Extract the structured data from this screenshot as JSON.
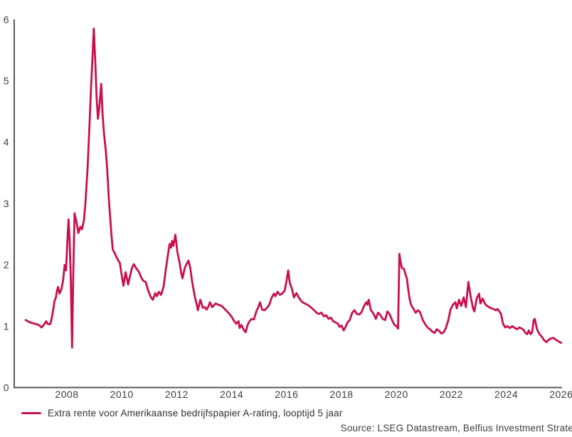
{
  "source_note": "Source: LSEG Datastream, Belfius Investment Strate",
  "colors": {
    "line": "#c8104e",
    "axis": "#59595b",
    "tick_text": "#3d3d3d"
  },
  "chart_data": {
    "type": "line",
    "title": "",
    "xlabel": "",
    "ylabel": "",
    "grid": false,
    "legend_position": "bottom-left",
    "x_ticks": [
      2008,
      2010,
      2012,
      2014,
      2016,
      2018,
      2020,
      2022,
      2024,
      2026
    ],
    "y_ticks": [
      0,
      1,
      2,
      3,
      4,
      5,
      6
    ],
    "x_range": [
      2006.2,
      2026.3
    ],
    "y_range": [
      0,
      6
    ],
    "series": [
      {
        "name": "Extra rente voor Amerikaanse bedrijfspapier A-rating, looptijd 5 jaar",
        "color": "#c8104e",
        "points": [
          [
            2006.5,
            1.1
          ],
          [
            2006.58,
            1.08
          ],
          [
            2006.67,
            1.06
          ],
          [
            2006.75,
            1.05
          ],
          [
            2006.83,
            1.04
          ],
          [
            2006.92,
            1.03
          ],
          [
            2007.0,
            1.01
          ],
          [
            2007.08,
            0.98
          ],
          [
            2007.17,
            1.03
          ],
          [
            2007.25,
            1.08
          ],
          [
            2007.29,
            1.04
          ],
          [
            2007.38,
            1.03
          ],
          [
            2007.42,
            1.07
          ],
          [
            2007.47,
            1.18
          ],
          [
            2007.51,
            1.29
          ],
          [
            2007.55,
            1.41
          ],
          [
            2007.6,
            1.47
          ],
          [
            2007.64,
            1.58
          ],
          [
            2007.68,
            1.64
          ],
          [
            2007.73,
            1.53
          ],
          [
            2007.77,
            1.57
          ],
          [
            2007.81,
            1.62
          ],
          [
            2007.86,
            1.74
          ],
          [
            2007.92,
            2.0
          ],
          [
            2007.97,
            1.91
          ],
          [
            2008.02,
            2.4
          ],
          [
            2008.06,
            2.74
          ],
          [
            2008.1,
            2.4
          ],
          [
            2008.14,
            1.8
          ],
          [
            2008.19,
            0.65
          ],
          [
            2008.23,
            1.8
          ],
          [
            2008.28,
            2.84
          ],
          [
            2008.35,
            2.7
          ],
          [
            2008.42,
            2.52
          ],
          [
            2008.49,
            2.62
          ],
          [
            2008.55,
            2.58
          ],
          [
            2008.62,
            2.72
          ],
          [
            2008.67,
            2.98
          ],
          [
            2008.75,
            3.55
          ],
          [
            2008.82,
            4.25
          ],
          [
            2008.88,
            4.9
          ],
          [
            2008.93,
            5.35
          ],
          [
            2008.98,
            5.85
          ],
          [
            2009.03,
            5.35
          ],
          [
            2009.08,
            4.75
          ],
          [
            2009.13,
            4.38
          ],
          [
            2009.18,
            4.55
          ],
          [
            2009.25,
            4.95
          ],
          [
            2009.3,
            4.45
          ],
          [
            2009.35,
            4.15
          ],
          [
            2009.42,
            3.85
          ],
          [
            2009.47,
            3.55
          ],
          [
            2009.53,
            3.05
          ],
          [
            2009.58,
            2.75
          ],
          [
            2009.63,
            2.45
          ],
          [
            2009.67,
            2.25
          ],
          [
            2009.73,
            2.2
          ],
          [
            2009.79,
            2.14
          ],
          [
            2009.86,
            2.08
          ],
          [
            2009.93,
            2.03
          ],
          [
            2009.99,
            1.85
          ],
          [
            2010.06,
            1.66
          ],
          [
            2010.14,
            1.88
          ],
          [
            2010.23,
            1.68
          ],
          [
            2010.3,
            1.82
          ],
          [
            2010.37,
            1.95
          ],
          [
            2010.44,
            2.01
          ],
          [
            2010.53,
            1.94
          ],
          [
            2010.62,
            1.89
          ],
          [
            2010.7,
            1.8
          ],
          [
            2010.78,
            1.74
          ],
          [
            2010.87,
            1.72
          ],
          [
            2010.96,
            1.58
          ],
          [
            2011.05,
            1.48
          ],
          [
            2011.13,
            1.43
          ],
          [
            2011.22,
            1.54
          ],
          [
            2011.28,
            1.49
          ],
          [
            2011.35,
            1.56
          ],
          [
            2011.43,
            1.51
          ],
          [
            2011.52,
            1.64
          ],
          [
            2011.6,
            1.92
          ],
          [
            2011.68,
            2.16
          ],
          [
            2011.74,
            2.34
          ],
          [
            2011.79,
            2.28
          ],
          [
            2011.83,
            2.39
          ],
          [
            2011.88,
            2.31
          ],
          [
            2011.95,
            2.49
          ],
          [
            2012.02,
            2.22
          ],
          [
            2012.1,
            2.04
          ],
          [
            2012.17,
            1.85
          ],
          [
            2012.21,
            1.78
          ],
          [
            2012.3,
            1.96
          ],
          [
            2012.38,
            2.03
          ],
          [
            2012.43,
            2.07
          ],
          [
            2012.5,
            1.93
          ],
          [
            2012.56,
            1.73
          ],
          [
            2012.66,
            1.48
          ],
          [
            2012.73,
            1.35
          ],
          [
            2012.77,
            1.26
          ],
          [
            2012.86,
            1.43
          ],
          [
            2012.95,
            1.3
          ],
          [
            2013.02,
            1.31
          ],
          [
            2013.09,
            1.27
          ],
          [
            2013.16,
            1.33
          ],
          [
            2013.21,
            1.39
          ],
          [
            2013.29,
            1.31
          ],
          [
            2013.42,
            1.37
          ],
          [
            2013.51,
            1.35
          ],
          [
            2013.64,
            1.33
          ],
          [
            2013.77,
            1.27
          ],
          [
            2013.9,
            1.21
          ],
          [
            2013.99,
            1.16
          ],
          [
            2014.07,
            1.1
          ],
          [
            2014.16,
            1.04
          ],
          [
            2014.25,
            1.08
          ],
          [
            2014.29,
            0.97
          ],
          [
            2014.36,
            1.02
          ],
          [
            2014.44,
            0.94
          ],
          [
            2014.51,
            0.9
          ],
          [
            2014.58,
            1.02
          ],
          [
            2014.65,
            1.08
          ],
          [
            2014.73,
            1.12
          ],
          [
            2014.81,
            1.11
          ],
          [
            2014.9,
            1.24
          ],
          [
            2014.97,
            1.31
          ],
          [
            2015.03,
            1.39
          ],
          [
            2015.11,
            1.27
          ],
          [
            2015.2,
            1.26
          ],
          [
            2015.29,
            1.3
          ],
          [
            2015.37,
            1.35
          ],
          [
            2015.46,
            1.47
          ],
          [
            2015.54,
            1.53
          ],
          [
            2015.59,
            1.49
          ],
          [
            2015.67,
            1.56
          ],
          [
            2015.76,
            1.51
          ],
          [
            2015.84,
            1.53
          ],
          [
            2015.93,
            1.58
          ],
          [
            2016.0,
            1.74
          ],
          [
            2016.06,
            1.91
          ],
          [
            2016.12,
            1.7
          ],
          [
            2016.19,
            1.62
          ],
          [
            2016.27,
            1.47
          ],
          [
            2016.36,
            1.54
          ],
          [
            2016.43,
            1.48
          ],
          [
            2016.5,
            1.43
          ],
          [
            2016.58,
            1.39
          ],
          [
            2016.66,
            1.37
          ],
          [
            2016.76,
            1.35
          ],
          [
            2016.88,
            1.31
          ],
          [
            2017.0,
            1.26
          ],
          [
            2017.09,
            1.22
          ],
          [
            2017.18,
            1.2
          ],
          [
            2017.27,
            1.22
          ],
          [
            2017.36,
            1.16
          ],
          [
            2017.44,
            1.18
          ],
          [
            2017.53,
            1.12
          ],
          [
            2017.61,
            1.14
          ],
          [
            2017.7,
            1.08
          ],
          [
            2017.79,
            1.06
          ],
          [
            2017.87,
            1.04
          ],
          [
            2017.93,
            0.99
          ],
          [
            2018.0,
            1.01
          ],
          [
            2018.08,
            0.93
          ],
          [
            2018.15,
            0.99
          ],
          [
            2018.22,
            1.06
          ],
          [
            2018.3,
            1.1
          ],
          [
            2018.39,
            1.22
          ],
          [
            2018.47,
            1.26
          ],
          [
            2018.56,
            1.2
          ],
          [
            2018.65,
            1.19
          ],
          [
            2018.73,
            1.23
          ],
          [
            2018.82,
            1.33
          ],
          [
            2018.9,
            1.39
          ],
          [
            2018.94,
            1.35
          ],
          [
            2018.99,
            1.43
          ],
          [
            2019.07,
            1.26
          ],
          [
            2019.16,
            1.21
          ],
          [
            2019.25,
            1.12
          ],
          [
            2019.33,
            1.22
          ],
          [
            2019.42,
            1.18
          ],
          [
            2019.5,
            1.12
          ],
          [
            2019.59,
            1.1
          ],
          [
            2019.67,
            1.24
          ],
          [
            2019.76,
            1.19
          ],
          [
            2019.84,
            1.1
          ],
          [
            2019.93,
            1.02
          ],
          [
            2020.01,
            1.0
          ],
          [
            2020.06,
            0.96
          ],
          [
            2020.11,
            2.18
          ],
          [
            2020.15,
            2.05
          ],
          [
            2020.2,
            1.95
          ],
          [
            2020.28,
            1.93
          ],
          [
            2020.32,
            1.86
          ],
          [
            2020.38,
            1.78
          ],
          [
            2020.43,
            1.6
          ],
          [
            2020.48,
            1.45
          ],
          [
            2020.53,
            1.35
          ],
          [
            2020.61,
            1.29
          ],
          [
            2020.7,
            1.22
          ],
          [
            2020.78,
            1.26
          ],
          [
            2020.86,
            1.23
          ],
          [
            2020.96,
            1.1
          ],
          [
            2021.04,
            1.04
          ],
          [
            2021.13,
            0.98
          ],
          [
            2021.22,
            0.95
          ],
          [
            2021.31,
            0.91
          ],
          [
            2021.39,
            0.89
          ],
          [
            2021.47,
            0.95
          ],
          [
            2021.56,
            0.92
          ],
          [
            2021.64,
            0.88
          ],
          [
            2021.72,
            0.9
          ],
          [
            2021.8,
            0.97
          ],
          [
            2021.89,
            1.1
          ],
          [
            2021.97,
            1.27
          ],
          [
            2022.06,
            1.35
          ],
          [
            2022.15,
            1.39
          ],
          [
            2022.2,
            1.29
          ],
          [
            2022.28,
            1.43
          ],
          [
            2022.36,
            1.33
          ],
          [
            2022.45,
            1.47
          ],
          [
            2022.53,
            1.31
          ],
          [
            2022.62,
            1.72
          ],
          [
            2022.71,
            1.47
          ],
          [
            2022.79,
            1.29
          ],
          [
            2022.84,
            1.24
          ],
          [
            2022.92,
            1.45
          ],
          [
            2023.01,
            1.53
          ],
          [
            2023.06,
            1.37
          ],
          [
            2023.14,
            1.45
          ],
          [
            2023.22,
            1.37
          ],
          [
            2023.3,
            1.33
          ],
          [
            2023.38,
            1.31
          ],
          [
            2023.46,
            1.29
          ],
          [
            2023.54,
            1.28
          ],
          [
            2023.62,
            1.26
          ],
          [
            2023.68,
            1.28
          ],
          [
            2023.75,
            1.24
          ],
          [
            2023.81,
            1.2
          ],
          [
            2023.88,
            1.04
          ],
          [
            2023.96,
            0.98
          ],
          [
            2024.05,
            1.0
          ],
          [
            2024.13,
            0.97
          ],
          [
            2024.22,
            1.0
          ],
          [
            2024.31,
            0.97
          ],
          [
            2024.4,
            0.95
          ],
          [
            2024.48,
            0.98
          ],
          [
            2024.56,
            0.96
          ],
          [
            2024.63,
            0.94
          ],
          [
            2024.7,
            0.89
          ],
          [
            2024.76,
            0.87
          ],
          [
            2024.82,
            0.93
          ],
          [
            2024.88,
            0.87
          ],
          [
            2024.94,
            0.9
          ],
          [
            2025.0,
            1.1
          ],
          [
            2025.04,
            1.12
          ],
          [
            2025.12,
            0.95
          ],
          [
            2025.21,
            0.87
          ],
          [
            2025.29,
            0.83
          ],
          [
            2025.38,
            0.77
          ],
          [
            2025.46,
            0.74
          ],
          [
            2025.55,
            0.78
          ],
          [
            2025.63,
            0.8
          ],
          [
            2025.72,
            0.81
          ],
          [
            2025.8,
            0.78
          ],
          [
            2025.88,
            0.76
          ],
          [
            2025.94,
            0.74
          ],
          [
            2026.0,
            0.73
          ]
        ]
      }
    ]
  }
}
